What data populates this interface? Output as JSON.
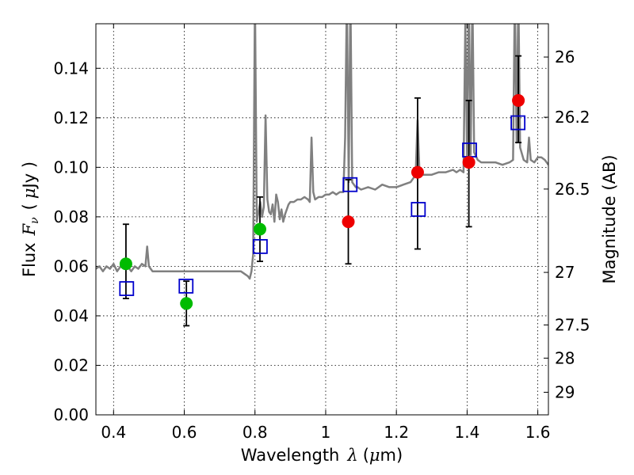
{
  "chart_data": {
    "type": "scatter",
    "title": "",
    "xlabel": {
      "text": "Wavelength",
      "symbol": "λ",
      "unit_open": "(",
      "unit_mu": "μ",
      "unit_rest": "m)"
    },
    "ylabel": {
      "text": "Flux",
      "symbol": "F",
      "subscript": "ν",
      "unit_open": "(",
      "unit_mu": "μ",
      "unit_rest": "Jy )"
    },
    "y2label": "Magnitude (AB)",
    "xlim": [
      0.35,
      1.63
    ],
    "ylim": [
      0.0,
      0.158
    ],
    "grid": true,
    "x_ticks": [
      {
        "value": 0.4,
        "label": "0.4"
      },
      {
        "value": 0.6,
        "label": "0.6"
      },
      {
        "value": 0.8,
        "label": "0.8"
      },
      {
        "value": 1.0,
        "label": "1"
      },
      {
        "value": 1.2,
        "label": "1.2"
      },
      {
        "value": 1.4,
        "label": "1.4"
      },
      {
        "value": 1.6,
        "label": "1.6"
      }
    ],
    "y_ticks": [
      {
        "value": 0.0,
        "label": "0.00"
      },
      {
        "value": 0.02,
        "label": "0.02"
      },
      {
        "value": 0.04,
        "label": "0.04"
      },
      {
        "value": 0.06,
        "label": "0.06"
      },
      {
        "value": 0.08,
        "label": "0.08"
      },
      {
        "value": 0.1,
        "label": "0.10"
      },
      {
        "value": 0.12,
        "label": "0.12"
      },
      {
        "value": 0.14,
        "label": "0.14"
      }
    ],
    "y2_ticks": [
      {
        "mag": 26,
        "label": "26"
      },
      {
        "mag": 26.2,
        "label": "26.2"
      },
      {
        "mag": 26.5,
        "label": "26.5"
      },
      {
        "mag": 27,
        "label": "27"
      },
      {
        "mag": 27.5,
        "label": "27.5"
      },
      {
        "mag": 28,
        "label": "28"
      },
      {
        "mag": 29,
        "label": "29"
      }
    ],
    "series": [
      {
        "kind": "line",
        "color": "#808080",
        "x": [
          0.35,
          0.36,
          0.37,
          0.38,
          0.39,
          0.4,
          0.41,
          0.42,
          0.43,
          0.44,
          0.45,
          0.46,
          0.47,
          0.48,
          0.49,
          0.495,
          0.5,
          0.505,
          0.51,
          0.52,
          0.53,
          0.54,
          0.55,
          0.56,
          0.57,
          0.58,
          0.59,
          0.6,
          0.61,
          0.62,
          0.63,
          0.64,
          0.65,
          0.66,
          0.67,
          0.68,
          0.69,
          0.7,
          0.71,
          0.72,
          0.73,
          0.74,
          0.75,
          0.76,
          0.77,
          0.78,
          0.785,
          0.79,
          0.795,
          0.8,
          0.805,
          0.81,
          0.815,
          0.82,
          0.825,
          0.83,
          0.835,
          0.84,
          0.845,
          0.85,
          0.855,
          0.86,
          0.865,
          0.87,
          0.875,
          0.88,
          0.885,
          0.89,
          0.895,
          0.9,
          0.91,
          0.92,
          0.93,
          0.94,
          0.95,
          0.955,
          0.96,
          0.965,
          0.97,
          0.98,
          0.99,
          1.0,
          1.01,
          1.02,
          1.03,
          1.04,
          1.05,
          1.055,
          1.06,
          1.065,
          1.07,
          1.075,
          1.08,
          1.085,
          1.09,
          1.1,
          1.12,
          1.14,
          1.16,
          1.18,
          1.2,
          1.22,
          1.24,
          1.25,
          1.255,
          1.26,
          1.265,
          1.27,
          1.28,
          1.3,
          1.32,
          1.34,
          1.36,
          1.37,
          1.38,
          1.39,
          1.395,
          1.4,
          1.405,
          1.41,
          1.415,
          1.42,
          1.43,
          1.44,
          1.46,
          1.48,
          1.5,
          1.52,
          1.53,
          1.535,
          1.54,
          1.545,
          1.55,
          1.56,
          1.57,
          1.575,
          1.58,
          1.59,
          1.6,
          1.61,
          1.62,
          1.63
        ],
        "y": [
          0.059,
          0.06,
          0.058,
          0.06,
          0.059,
          0.061,
          0.058,
          0.06,
          0.059,
          0.06,
          0.058,
          0.06,
          0.059,
          0.061,
          0.06,
          0.068,
          0.06,
          0.059,
          0.058,
          0.058,
          0.058,
          0.058,
          0.058,
          0.058,
          0.058,
          0.058,
          0.058,
          0.058,
          0.058,
          0.058,
          0.058,
          0.058,
          0.058,
          0.058,
          0.058,
          0.058,
          0.058,
          0.058,
          0.058,
          0.058,
          0.058,
          0.058,
          0.058,
          0.058,
          0.057,
          0.056,
          0.055,
          0.058,
          0.065,
          0.17,
          0.078,
          0.082,
          0.086,
          0.08,
          0.084,
          0.121,
          0.087,
          0.082,
          0.081,
          0.085,
          0.078,
          0.089,
          0.086,
          0.079,
          0.083,
          0.078,
          0.081,
          0.083,
          0.085,
          0.086,
          0.086,
          0.087,
          0.087,
          0.088,
          0.087,
          0.086,
          0.112,
          0.09,
          0.087,
          0.088,
          0.088,
          0.089,
          0.089,
          0.09,
          0.089,
          0.09,
          0.09,
          0.112,
          0.17,
          0.094,
          0.17,
          0.094,
          0.093,
          0.092,
          0.092,
          0.091,
          0.092,
          0.091,
          0.093,
          0.092,
          0.092,
          0.093,
          0.094,
          0.096,
          0.099,
          0.119,
          0.099,
          0.097,
          0.097,
          0.097,
          0.098,
          0.098,
          0.099,
          0.098,
          0.099,
          0.098,
          0.16,
          0.104,
          0.17,
          0.105,
          0.17,
          0.106,
          0.103,
          0.102,
          0.102,
          0.102,
          0.101,
          0.102,
          0.103,
          0.17,
          0.11,
          0.17,
          0.108,
          0.103,
          0.102,
          0.112,
          0.103,
          0.102,
          0.104,
          0.104,
          0.103,
          0.101
        ]
      },
      {
        "kind": "squares",
        "color": "#0000cc",
        "points": [
          {
            "x": 0.437,
            "y": 0.051
          },
          {
            "x": 0.605,
            "y": 0.052
          },
          {
            "x": 0.815,
            "y": 0.068
          },
          {
            "x": 1.069,
            "y": 0.093
          },
          {
            "x": 1.262,
            "y": 0.083
          },
          {
            "x": 1.407,
            "y": 0.107
          },
          {
            "x": 1.544,
            "y": 0.118
          }
        ]
      },
      {
        "kind": "circles",
        "color": "#00bb00",
        "points": [
          {
            "x": 0.435,
            "y": 0.061,
            "err": [
              0.047,
              0.077
            ]
          },
          {
            "x": 0.606,
            "y": 0.045,
            "err": [
              0.036,
              0.054
            ]
          },
          {
            "x": 0.814,
            "y": 0.075,
            "err": [
              0.062,
              0.088
            ]
          }
        ]
      },
      {
        "kind": "circles",
        "color": "#ee0000",
        "points": [
          {
            "x": 1.064,
            "y": 0.078,
            "err": [
              0.061,
              0.095
            ]
          },
          {
            "x": 1.26,
            "y": 0.098,
            "err": [
              0.067,
              0.128
            ]
          },
          {
            "x": 1.405,
            "y": 0.102,
            "err": [
              0.076,
              0.127
            ]
          },
          {
            "x": 1.545,
            "y": 0.127,
            "err": [
              0.11,
              0.145
            ]
          }
        ]
      }
    ]
  }
}
